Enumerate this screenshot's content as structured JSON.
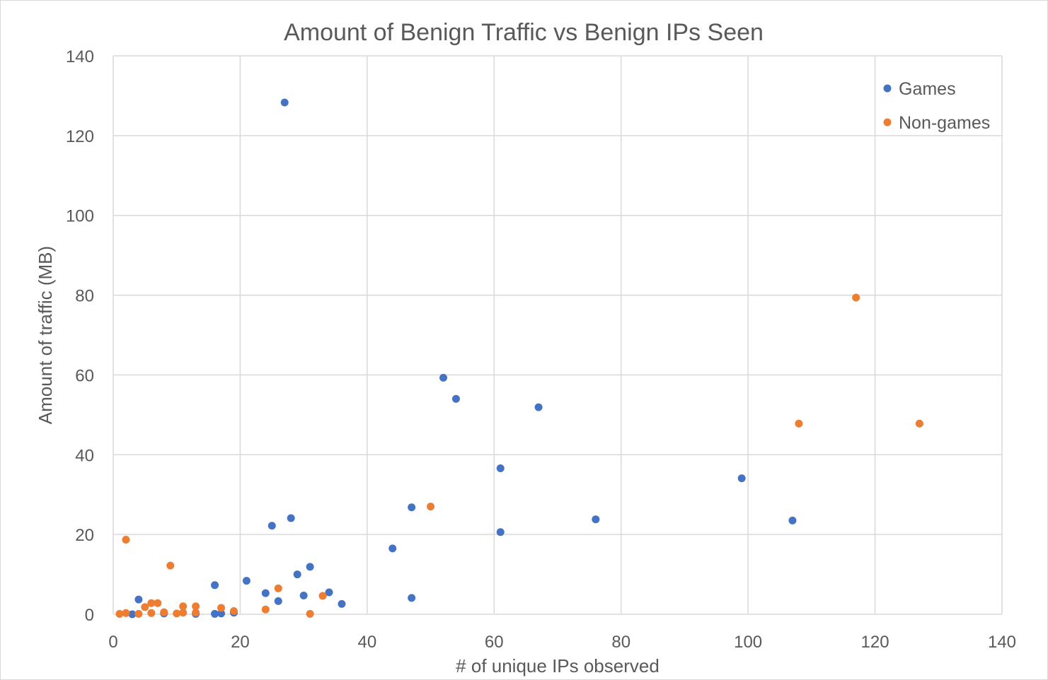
{
  "chart_data": {
    "type": "scatter",
    "title": "Amount of Benign Traffic vs Benign IPs Seen",
    "xlabel": "# of unique IPs observed",
    "ylabel": "Amount of traffic (MB)",
    "xlim": [
      0,
      140
    ],
    "ylim": [
      0,
      140
    ],
    "xticks": [
      0,
      20,
      40,
      60,
      80,
      100,
      120,
      140
    ],
    "yticks": [
      0,
      20,
      40,
      60,
      80,
      100,
      120,
      140
    ],
    "grid": true,
    "legend_position": "top-right",
    "series": [
      {
        "name": "Games",
        "color": "#4472C4",
        "points": [
          [
            27,
            128.3
          ],
          [
            52,
            59.3
          ],
          [
            54,
            54
          ],
          [
            67,
            51.9
          ],
          [
            61,
            36.6
          ],
          [
            99,
            34.1
          ],
          [
            47,
            26.8
          ],
          [
            28,
            24.1
          ],
          [
            76,
            23.8
          ],
          [
            107,
            23.5
          ],
          [
            25,
            22.2
          ],
          [
            61,
            20.6
          ],
          [
            44,
            16.5
          ],
          [
            31,
            11.9
          ],
          [
            29,
            10
          ],
          [
            21,
            8.4
          ],
          [
            16,
            7.3
          ],
          [
            24,
            5.3
          ],
          [
            34,
            5.5
          ],
          [
            30,
            4.7
          ],
          [
            47,
            4.1
          ],
          [
            4,
            3.7
          ],
          [
            26,
            3.3
          ],
          [
            36,
            2.6
          ],
          [
            3,
            0
          ],
          [
            8,
            0.2
          ],
          [
            13,
            0.1
          ],
          [
            16,
            0.1
          ],
          [
            17,
            0.2
          ],
          [
            19,
            0.4
          ]
        ]
      },
      {
        "name": "Non-games",
        "color": "#ED7D31",
        "points": [
          [
            117,
            79.4
          ],
          [
            108,
            47.8
          ],
          [
            127,
            47.8
          ],
          [
            50,
            27
          ],
          [
            2,
            18.7
          ],
          [
            9,
            12.2
          ],
          [
            26,
            6.5
          ],
          [
            33,
            4.6
          ],
          [
            6,
            2.8
          ],
          [
            7,
            2.8
          ],
          [
            5,
            1.8
          ],
          [
            11,
            2
          ],
          [
            13,
            2
          ],
          [
            17,
            1.6
          ],
          [
            19,
            0.8
          ],
          [
            24,
            1.2
          ],
          [
            1,
            0.1
          ],
          [
            2,
            0.3
          ],
          [
            4,
            0.1
          ],
          [
            6,
            0.3
          ],
          [
            8,
            0.5
          ],
          [
            10,
            0.2
          ],
          [
            11,
            0.4
          ],
          [
            13,
            0.4
          ],
          [
            31,
            0.1
          ]
        ]
      }
    ]
  }
}
